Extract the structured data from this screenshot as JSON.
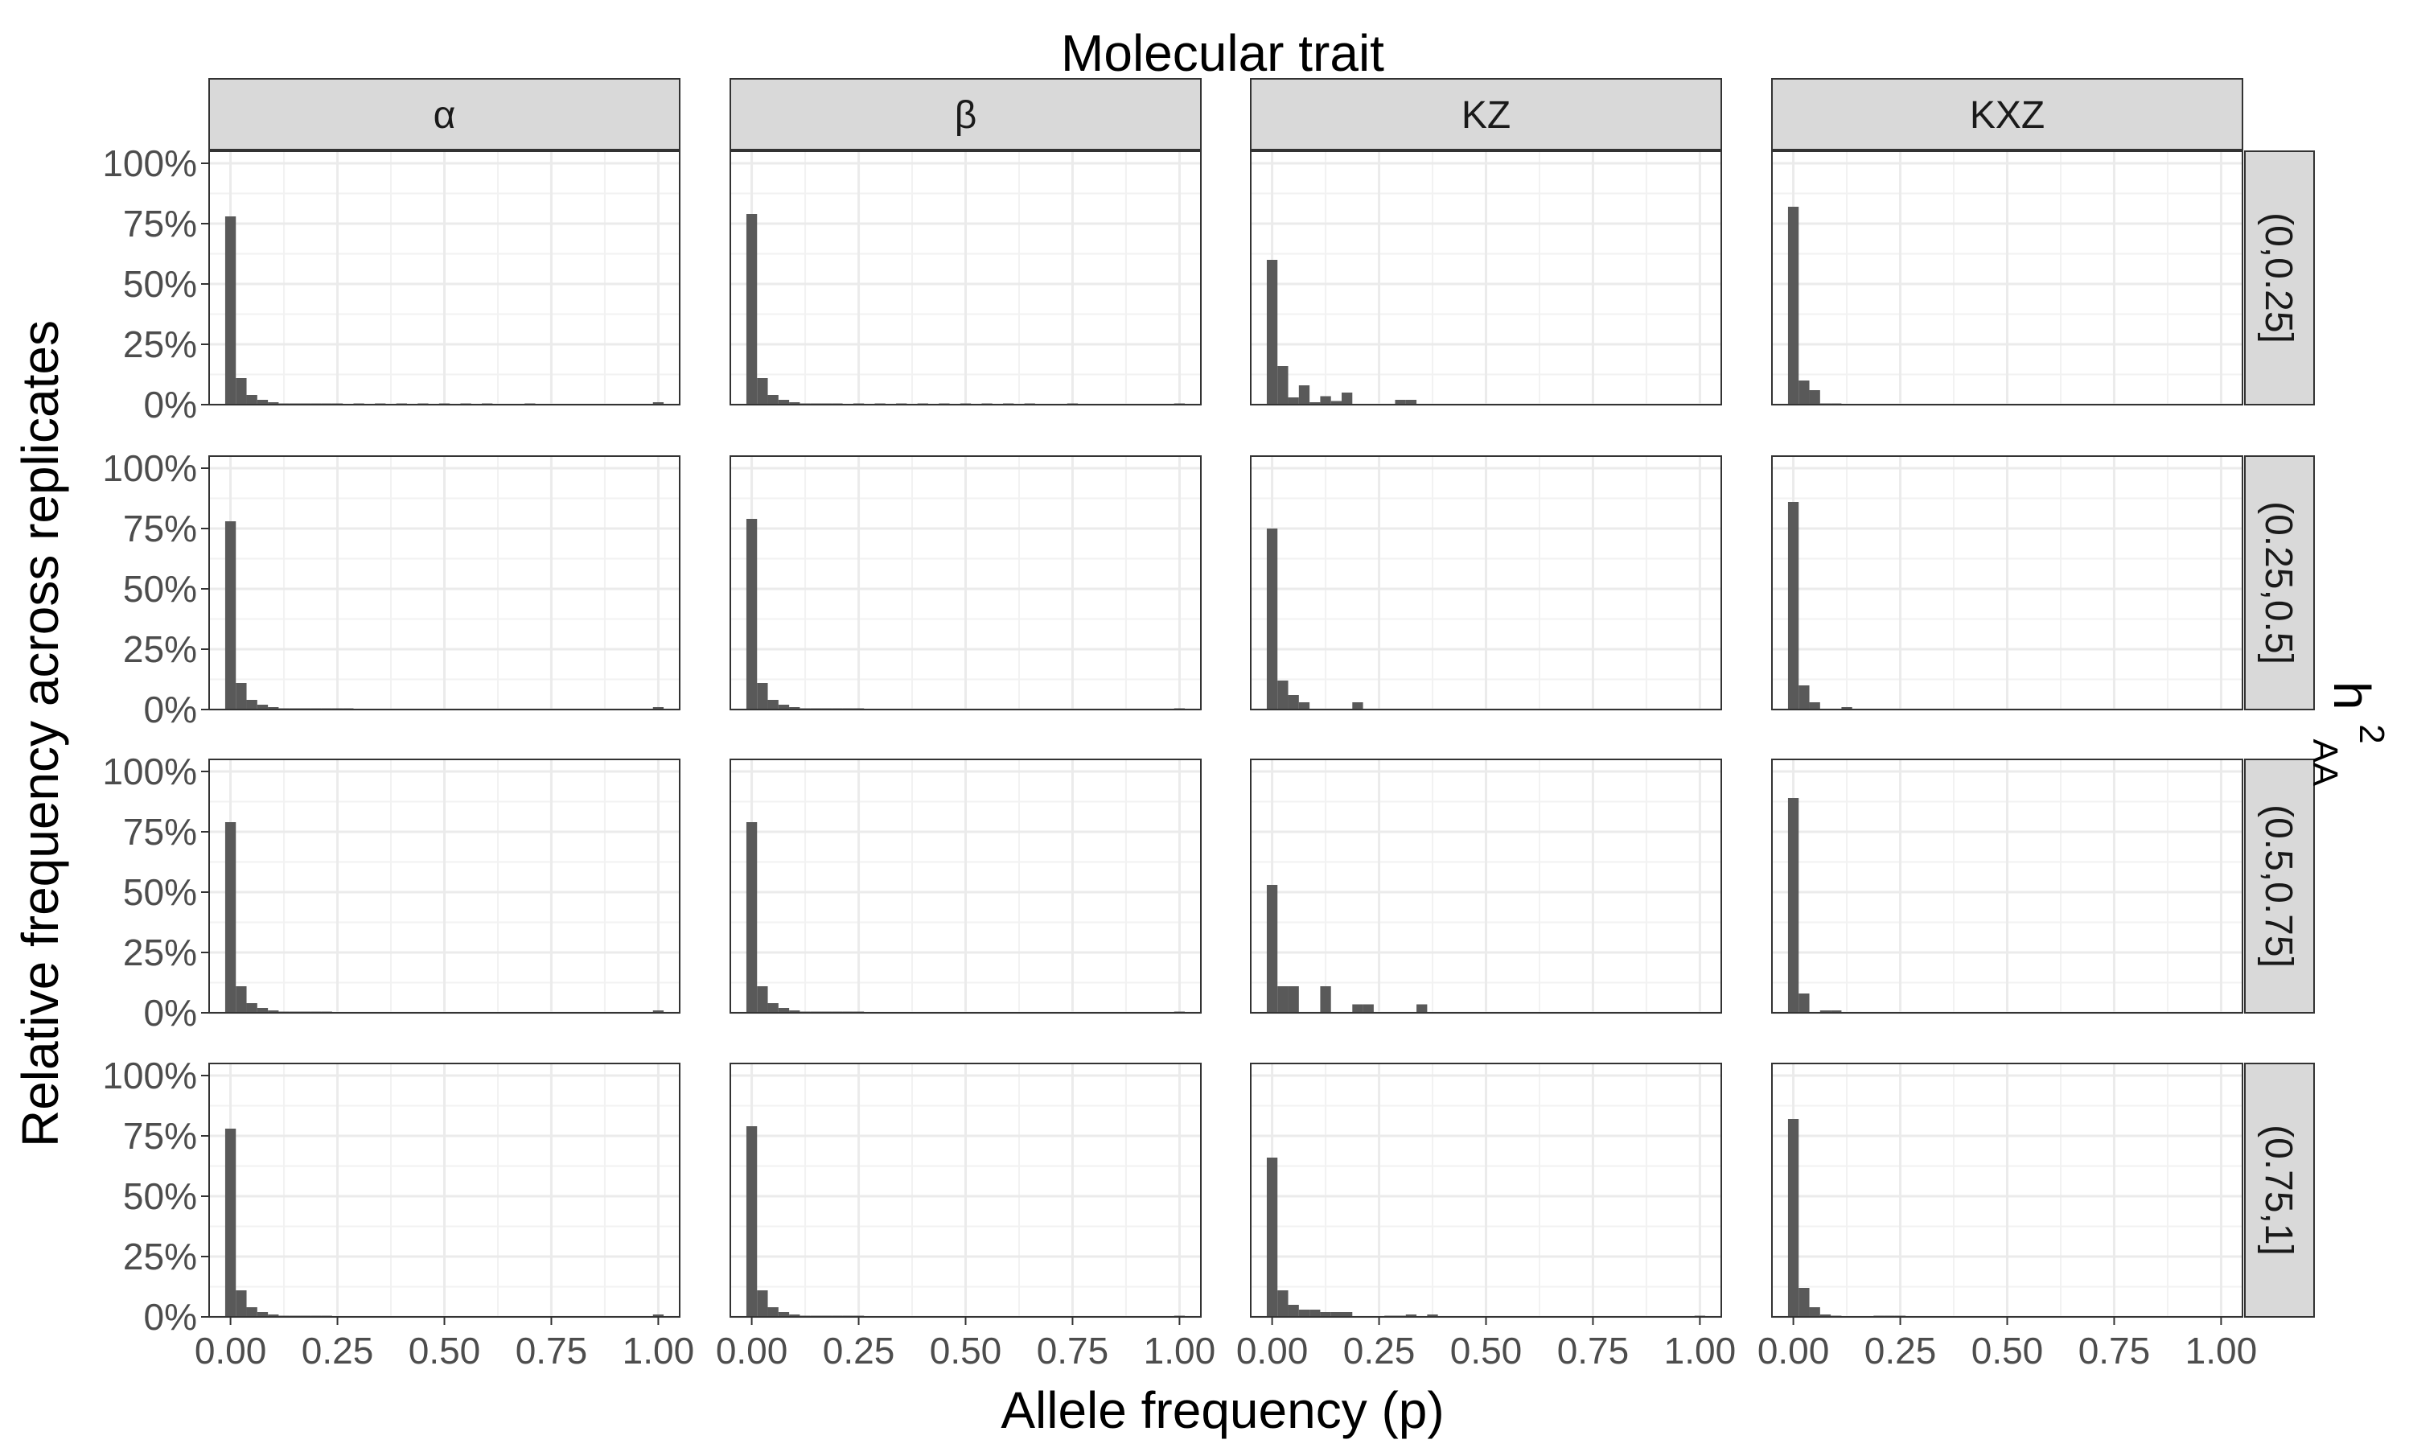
{
  "chart_data": {
    "type": "bar",
    "subtype": "faceted histogram",
    "title": "Molecular trait",
    "xlabel": "Allele frequency (p)",
    "ylabel": "Relative frequency across replicates",
    "row_facet_title": "h",
    "row_facet_title_sup": "2",
    "row_facet_title_sub": "AA",
    "column_facets": [
      "α",
      "β",
      "KZ",
      "KXZ"
    ],
    "row_facets": [
      "(0,0.25]",
      "(0.25,0.5]",
      "(0.5,0.75]",
      "(0.75,1]"
    ],
    "xlim": [
      -0.05,
      1.05
    ],
    "ylim": [
      0,
      1.05
    ],
    "x_ticks": [
      0,
      0.25,
      0.5,
      0.75,
      1
    ],
    "x_tick_labels": [
      "0.00",
      "0.25",
      "0.50",
      "0.75",
      "1.00"
    ],
    "y_ticks": [
      0,
      0.25,
      0.5,
      0.75,
      1
    ],
    "y_tick_labels": [
      "0%",
      "25%",
      "50%",
      "75%",
      "100%"
    ],
    "bin_width": 0.025,
    "bar_color": "#595959",
    "grid": true,
    "panels": [
      {
        "col": "α",
        "row": "(0,0.25]",
        "bins": [
          [
            0,
            0.78
          ],
          [
            0.025,
            0.11
          ],
          [
            0.05,
            0.04
          ],
          [
            0.075,
            0.02
          ],
          [
            0.1,
            0.01
          ],
          [
            0.125,
            0.005
          ],
          [
            0.15,
            0.004
          ],
          [
            0.175,
            0.003
          ],
          [
            0.2,
            0.002
          ],
          [
            0.225,
            0.002
          ],
          [
            0.25,
            0.001
          ],
          [
            0.3,
            0.001
          ],
          [
            0.35,
            0.001
          ],
          [
            0.4,
            0.001
          ],
          [
            0.45,
            0.001
          ],
          [
            0.5,
            0.001
          ],
          [
            0.55,
            0.001
          ],
          [
            0.6,
            0.001
          ],
          [
            0.7,
            0.001
          ],
          [
            1.0,
            0.01
          ]
        ]
      },
      {
        "col": "β",
        "row": "(0,0.25]",
        "bins": [
          [
            0,
            0.79
          ],
          [
            0.025,
            0.11
          ],
          [
            0.05,
            0.04
          ],
          [
            0.075,
            0.02
          ],
          [
            0.1,
            0.01
          ],
          [
            0.125,
            0.005
          ],
          [
            0.15,
            0.003
          ],
          [
            0.175,
            0.002
          ],
          [
            0.2,
            0.002
          ],
          [
            0.25,
            0.001
          ],
          [
            0.3,
            0.001
          ],
          [
            0.35,
            0.001
          ],
          [
            0.4,
            0.001
          ],
          [
            0.45,
            0.001
          ],
          [
            0.5,
            0.001
          ],
          [
            0.55,
            0.001
          ],
          [
            0.6,
            0.001
          ],
          [
            0.65,
            0.001
          ],
          [
            0.75,
            0.001
          ],
          [
            1.0,
            0.005
          ]
        ]
      },
      {
        "col": "KZ",
        "row": "(0,0.25]",
        "bins": [
          [
            0,
            0.6
          ],
          [
            0.025,
            0.16
          ],
          [
            0.05,
            0.03
          ],
          [
            0.075,
            0.08
          ],
          [
            0.1,
            0.01
          ],
          [
            0.125,
            0.035
          ],
          [
            0.15,
            0.015
          ],
          [
            0.175,
            0.05
          ],
          [
            0.3,
            0.02
          ],
          [
            0.325,
            0.02
          ]
        ]
      },
      {
        "col": "KXZ",
        "row": "(0,0.25]",
        "bins": [
          [
            0,
            0.82
          ],
          [
            0.025,
            0.1
          ],
          [
            0.05,
            0.06
          ],
          [
            0.075,
            0.005
          ],
          [
            0.1,
            0.003
          ]
        ]
      },
      {
        "col": "α",
        "row": "(0.25,0.5]",
        "bins": [
          [
            0,
            0.78
          ],
          [
            0.025,
            0.11
          ],
          [
            0.05,
            0.04
          ],
          [
            0.075,
            0.02
          ],
          [
            0.1,
            0.01
          ],
          [
            0.125,
            0.005
          ],
          [
            0.15,
            0.004
          ],
          [
            0.175,
            0.003
          ],
          [
            0.2,
            0.002
          ],
          [
            0.225,
            0.002
          ],
          [
            0.25,
            0.001
          ],
          [
            0.275,
            0.001
          ],
          [
            1.0,
            0.01
          ]
        ]
      },
      {
        "col": "β",
        "row": "(0.25,0.5]",
        "bins": [
          [
            0,
            0.79
          ],
          [
            0.025,
            0.11
          ],
          [
            0.05,
            0.04
          ],
          [
            0.075,
            0.02
          ],
          [
            0.1,
            0.01
          ],
          [
            0.125,
            0.005
          ],
          [
            0.15,
            0.003
          ],
          [
            0.175,
            0.002
          ],
          [
            0.2,
            0.002
          ],
          [
            0.225,
            0.001
          ],
          [
            0.25,
            0.001
          ],
          [
            1.0,
            0.005
          ]
        ]
      },
      {
        "col": "KZ",
        "row": "(0.25,0.5]",
        "bins": [
          [
            0,
            0.75
          ],
          [
            0.025,
            0.12
          ],
          [
            0.05,
            0.06
          ],
          [
            0.075,
            0.03
          ],
          [
            0.2,
            0.03
          ]
        ]
      },
      {
        "col": "KXZ",
        "row": "(0.25,0.5]",
        "bins": [
          [
            0,
            0.86
          ],
          [
            0.025,
            0.1
          ],
          [
            0.05,
            0.03
          ],
          [
            0.125,
            0.01
          ]
        ]
      },
      {
        "col": "α",
        "row": "(0.5,0.75]",
        "bins": [
          [
            0,
            0.79
          ],
          [
            0.025,
            0.11
          ],
          [
            0.05,
            0.04
          ],
          [
            0.075,
            0.02
          ],
          [
            0.1,
            0.01
          ],
          [
            0.125,
            0.005
          ],
          [
            0.15,
            0.003
          ],
          [
            0.175,
            0.002
          ],
          [
            0.2,
            0.002
          ],
          [
            0.225,
            0.001
          ],
          [
            1.0,
            0.01
          ]
        ]
      },
      {
        "col": "β",
        "row": "(0.5,0.75]",
        "bins": [
          [
            0,
            0.79
          ],
          [
            0.025,
            0.11
          ],
          [
            0.05,
            0.04
          ],
          [
            0.075,
            0.02
          ],
          [
            0.1,
            0.01
          ],
          [
            0.125,
            0.005
          ],
          [
            0.15,
            0.003
          ],
          [
            0.175,
            0.002
          ],
          [
            0.2,
            0.002
          ],
          [
            0.225,
            0.001
          ],
          [
            0.25,
            0.001
          ],
          [
            1.0,
            0.005
          ]
        ]
      },
      {
        "col": "KZ",
        "row": "(0.5,0.75]",
        "bins": [
          [
            0,
            0.53
          ],
          [
            0.025,
            0.11
          ],
          [
            0.05,
            0.11
          ],
          [
            0.125,
            0.11
          ],
          [
            0.2,
            0.035
          ],
          [
            0.225,
            0.035
          ],
          [
            0.35,
            0.035
          ]
        ]
      },
      {
        "col": "KXZ",
        "row": "(0.5,0.75]",
        "bins": [
          [
            0,
            0.89
          ],
          [
            0.025,
            0.08
          ],
          [
            0.075,
            0.01
          ],
          [
            0.1,
            0.01
          ]
        ]
      },
      {
        "col": "α",
        "row": "(0.75,1]",
        "bins": [
          [
            0,
            0.78
          ],
          [
            0.025,
            0.11
          ],
          [
            0.05,
            0.04
          ],
          [
            0.075,
            0.02
          ],
          [
            0.1,
            0.01
          ],
          [
            0.125,
            0.005
          ],
          [
            0.15,
            0.004
          ],
          [
            0.175,
            0.003
          ],
          [
            0.2,
            0.002
          ],
          [
            0.225,
            0.001
          ],
          [
            1.0,
            0.01
          ]
        ]
      },
      {
        "col": "β",
        "row": "(0.75,1]",
        "bins": [
          [
            0,
            0.79
          ],
          [
            0.025,
            0.11
          ],
          [
            0.05,
            0.04
          ],
          [
            0.075,
            0.02
          ],
          [
            0.1,
            0.01
          ],
          [
            0.125,
            0.005
          ],
          [
            0.15,
            0.003
          ],
          [
            0.175,
            0.002
          ],
          [
            0.2,
            0.002
          ],
          [
            0.225,
            0.001
          ],
          [
            0.25,
            0.001
          ],
          [
            1.0,
            0.005
          ]
        ]
      },
      {
        "col": "KZ",
        "row": "(0.75,1]",
        "bins": [
          [
            0,
            0.66
          ],
          [
            0.025,
            0.11
          ],
          [
            0.05,
            0.05
          ],
          [
            0.075,
            0.03
          ],
          [
            0.1,
            0.03
          ],
          [
            0.125,
            0.02
          ],
          [
            0.15,
            0.02
          ],
          [
            0.175,
            0.02
          ],
          [
            0.275,
            0.005
          ],
          [
            0.3,
            0.005
          ],
          [
            0.325,
            0.01
          ],
          [
            0.375,
            0.01
          ],
          [
            1.0,
            0.005
          ]
        ]
      },
      {
        "col": "KXZ",
        "row": "(0.75,1]",
        "bins": [
          [
            0,
            0.82
          ],
          [
            0.025,
            0.12
          ],
          [
            0.05,
            0.04
          ],
          [
            0.075,
            0.01
          ],
          [
            0.1,
            0.005
          ],
          [
            0.2,
            0.003
          ],
          [
            0.225,
            0.003
          ],
          [
            0.25,
            0.003
          ]
        ]
      }
    ]
  }
}
